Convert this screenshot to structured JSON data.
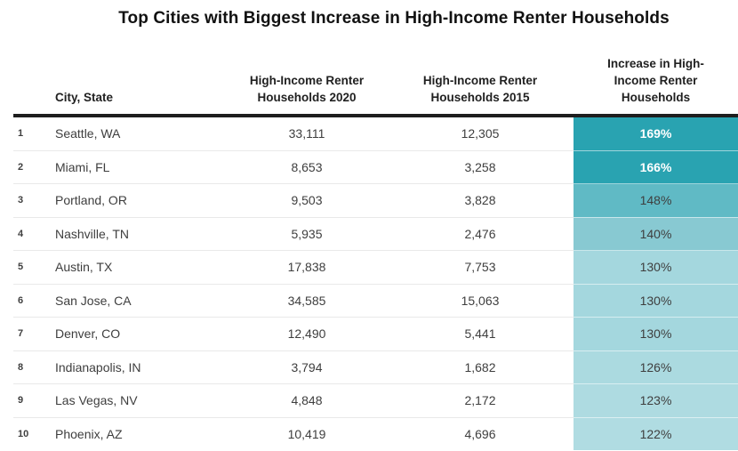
{
  "page": {
    "title": "Top Cities with Biggest Increase in High-Income Renter Households"
  },
  "colors": {
    "header_rule": "#1e1e1e",
    "row_separator": "#e9e9e9",
    "teal_dark": "#29A3B1",
    "teal_light": "#B0DCE2"
  },
  "table": {
    "headers": {
      "rank": "",
      "city": "City, State",
      "hh2020": "High-Income Renter Households 2020",
      "hh2015": "High-Income Renter Households 2015",
      "increase": "Increase in High-Income Renter Households"
    },
    "rows": [
      {
        "rank": "1",
        "city": "Seattle, WA",
        "hh2020": "33,111",
        "hh2015": "12,305",
        "increase": "169%",
        "bg": "#29A3B1",
        "fg": "#FFFFFF",
        "weight": "700"
      },
      {
        "rank": "2",
        "city": "Miami, FL",
        "hh2020": "8,653",
        "hh2015": "3,258",
        "increase": "166%",
        "bg": "#29A3B1",
        "fg": "#FFFFFF",
        "weight": "700"
      },
      {
        "rank": "3",
        "city": "Portland, OR",
        "hh2020": "9,503",
        "hh2015": "3,828",
        "increase": "148%",
        "bg": "#60BAC5",
        "fg": "#3E3E3E",
        "weight": "400"
      },
      {
        "rank": "4",
        "city": "Nashville, TN",
        "hh2020": "5,935",
        "hh2015": "2,476",
        "increase": "140%",
        "bg": "#88C9D2",
        "fg": "#3E3E3E",
        "weight": "400"
      },
      {
        "rank": "5",
        "city": "Austin, TX",
        "hh2020": "17,838",
        "hh2015": "7,753",
        "increase": "130%",
        "bg": "#A4D7DE",
        "fg": "#3E3E3E",
        "weight": "400"
      },
      {
        "rank": "6",
        "city": "San Jose, CA",
        "hh2020": "34,585",
        "hh2015": "15,063",
        "increase": "130%",
        "bg": "#A4D7DE",
        "fg": "#3E3E3E",
        "weight": "400"
      },
      {
        "rank": "7",
        "city": "Denver, CO",
        "hh2020": "12,490",
        "hh2015": "5,441",
        "increase": "130%",
        "bg": "#A4D7DE",
        "fg": "#3E3E3E",
        "weight": "400"
      },
      {
        "rank": "8",
        "city": "Indianapolis, IN",
        "hh2020": "3,794",
        "hh2015": "1,682",
        "increase": "126%",
        "bg": "#ABDAE0",
        "fg": "#3E3E3E",
        "weight": "400"
      },
      {
        "rank": "9",
        "city": "Las Vegas, NV",
        "hh2020": "4,848",
        "hh2015": "2,172",
        "increase": "123%",
        "bg": "#AEDBE1",
        "fg": "#3E3E3E",
        "weight": "400"
      },
      {
        "rank": "10",
        "city": "Phoenix, AZ",
        "hh2020": "10,419",
        "hh2015": "4,696",
        "increase": "122%",
        "bg": "#B0DCE2",
        "fg": "#3E3E3E",
        "weight": "400"
      }
    ]
  },
  "chart_data": {
    "type": "table",
    "title": "Top Cities with Biggest Increase in High-Income Renter Households",
    "columns": [
      "Rank",
      "City, State",
      "High-Income Renter Households 2020",
      "High-Income Renter Households 2015",
      "Increase in High-Income Renter Households"
    ],
    "rows": [
      [
        1,
        "Seattle, WA",
        33111,
        12305,
        "169%"
      ],
      [
        2,
        "Miami, FL",
        8653,
        3258,
        "166%"
      ],
      [
        3,
        "Portland, OR",
        9503,
        3828,
        "148%"
      ],
      [
        4,
        "Nashville, TN",
        5935,
        2476,
        "140%"
      ],
      [
        5,
        "Austin, TX",
        17838,
        7753,
        "130%"
      ],
      [
        6,
        "San Jose, CA",
        34585,
        15063,
        "130%"
      ],
      [
        7,
        "Denver, CO",
        12490,
        5441,
        "130%"
      ],
      [
        8,
        "Indianapolis, IN",
        3794,
        1682,
        "126%"
      ],
      [
        9,
        "Las Vegas, NV",
        4848,
        2172,
        "123%"
      ],
      [
        10,
        "Phoenix, AZ",
        10419,
        4696,
        "122%"
      ]
    ],
    "heatmap_column": "Increase in High-Income Renter Households",
    "heatmap_scale": {
      "min_value": "122%",
      "min_color": "#B0DCE2",
      "max_value": "169%",
      "max_color": "#29A3B1"
    },
    "layout": {
      "grid": "horizontal row separators",
      "header_rule": "thick black",
      "legend": "none"
    }
  }
}
